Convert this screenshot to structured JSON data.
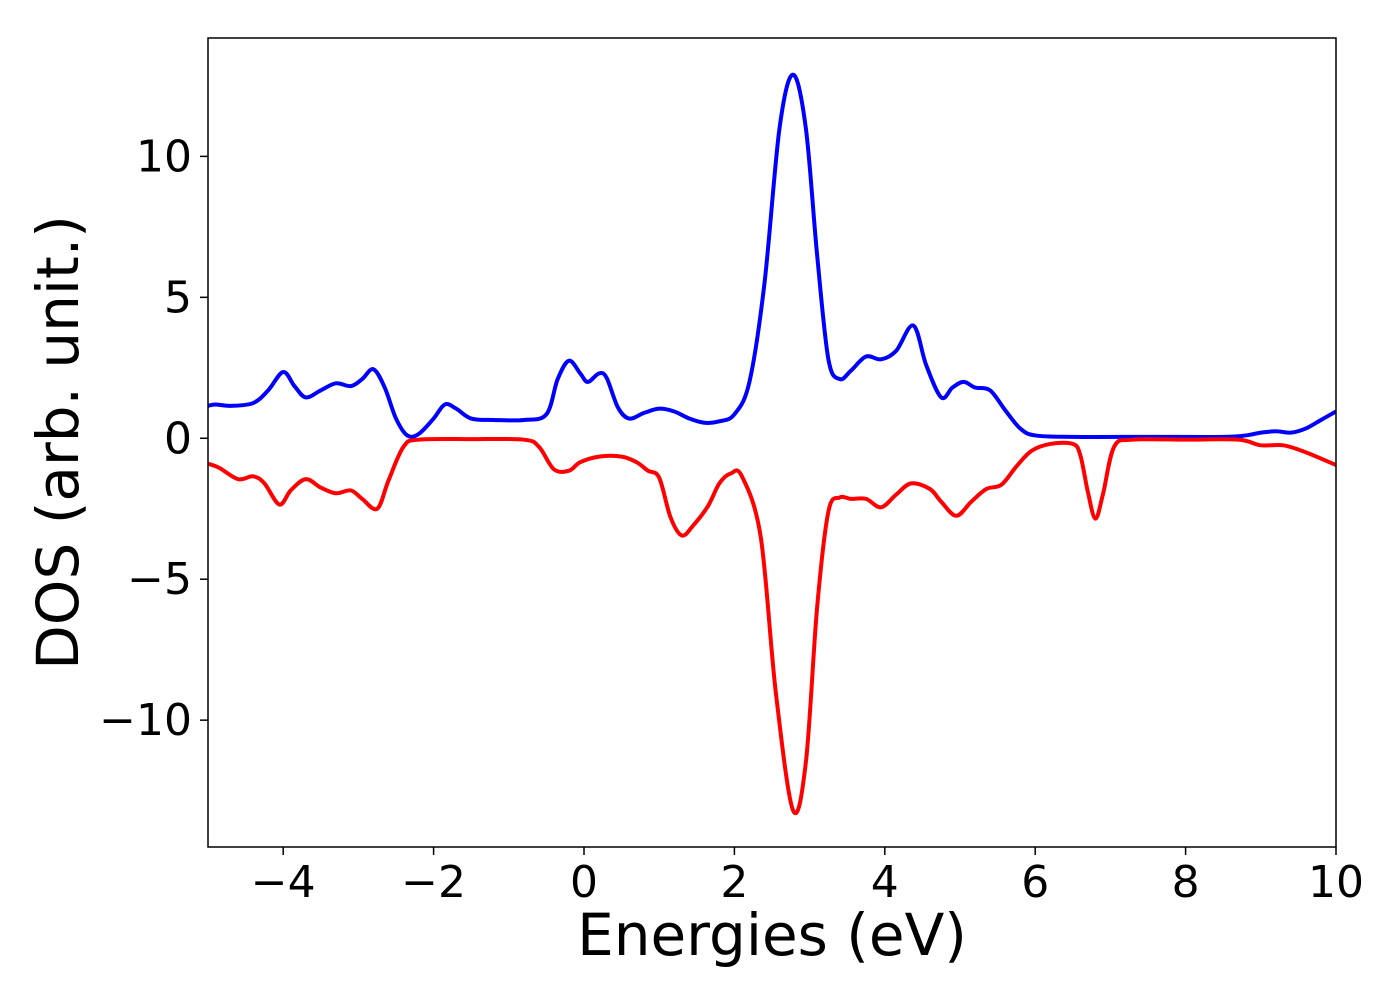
{
  "chart_data": {
    "type": "line",
    "title": "",
    "xlabel": "Energies (eV)",
    "ylabel": "DOS (arb. unit.)",
    "xlim": [
      -5,
      10
    ],
    "ylim": [
      -14.5,
      14.2
    ],
    "grid": false,
    "xticks": [
      {
        "value": -4,
        "label": "−4"
      },
      {
        "value": -2,
        "label": "−2"
      },
      {
        "value": 0,
        "label": "0"
      },
      {
        "value": 2,
        "label": "2"
      },
      {
        "value": 4,
        "label": "4"
      },
      {
        "value": 6,
        "label": "6"
      },
      {
        "value": 8,
        "label": "8"
      },
      {
        "value": 10,
        "label": "10"
      }
    ],
    "yticks": [
      {
        "value": -10,
        "label": "−10"
      },
      {
        "value": -5,
        "label": "−5"
      },
      {
        "value": 0,
        "label": "0"
      },
      {
        "value": 5,
        "label": "5"
      },
      {
        "value": 10,
        "label": "10"
      }
    ],
    "series": [
      {
        "color": "#0000ff",
        "points": [
          [
            -5.0,
            1.15
          ],
          [
            -4.9,
            1.2
          ],
          [
            -4.7,
            1.15
          ],
          [
            -4.4,
            1.25
          ],
          [
            -4.2,
            1.7
          ],
          [
            -4.0,
            2.35
          ],
          [
            -3.85,
            1.85
          ],
          [
            -3.7,
            1.45
          ],
          [
            -3.5,
            1.7
          ],
          [
            -3.3,
            1.95
          ],
          [
            -3.1,
            1.85
          ],
          [
            -2.95,
            2.1
          ],
          [
            -2.8,
            2.45
          ],
          [
            -2.65,
            1.8
          ],
          [
            -2.5,
            0.7
          ],
          [
            -2.35,
            0.1
          ],
          [
            -2.2,
            0.15
          ],
          [
            -2.0,
            0.7
          ],
          [
            -1.85,
            1.2
          ],
          [
            -1.7,
            1.05
          ],
          [
            -1.5,
            0.7
          ],
          [
            -1.2,
            0.65
          ],
          [
            -0.8,
            0.65
          ],
          [
            -0.5,
            0.85
          ],
          [
            -0.35,
            2.1
          ],
          [
            -0.2,
            2.75
          ],
          [
            -0.05,
            2.3
          ],
          [
            0.05,
            2.0
          ],
          [
            0.2,
            2.3
          ],
          [
            0.3,
            2.15
          ],
          [
            0.45,
            1.1
          ],
          [
            0.6,
            0.7
          ],
          [
            0.8,
            0.9
          ],
          [
            1.0,
            1.05
          ],
          [
            1.2,
            0.95
          ],
          [
            1.4,
            0.7
          ],
          [
            1.6,
            0.55
          ],
          [
            1.8,
            0.6
          ],
          [
            2.0,
            0.85
          ],
          [
            2.2,
            2.0
          ],
          [
            2.4,
            5.5
          ],
          [
            2.6,
            11.0
          ],
          [
            2.78,
            12.9
          ],
          [
            2.95,
            11.0
          ],
          [
            3.1,
            6.5
          ],
          [
            3.25,
            2.8
          ],
          [
            3.4,
            2.1
          ],
          [
            3.55,
            2.4
          ],
          [
            3.75,
            2.9
          ],
          [
            3.95,
            2.8
          ],
          [
            4.15,
            3.1
          ],
          [
            4.38,
            4.0
          ],
          [
            4.55,
            2.6
          ],
          [
            4.75,
            1.45
          ],
          [
            4.9,
            1.8
          ],
          [
            5.05,
            2.0
          ],
          [
            5.2,
            1.8
          ],
          [
            5.4,
            1.7
          ],
          [
            5.6,
            1.0
          ],
          [
            5.8,
            0.35
          ],
          [
            6.0,
            0.1
          ],
          [
            6.5,
            0.05
          ],
          [
            7.5,
            0.05
          ],
          [
            8.5,
            0.05
          ],
          [
            8.8,
            0.1
          ],
          [
            9.0,
            0.2
          ],
          [
            9.2,
            0.25
          ],
          [
            9.4,
            0.2
          ],
          [
            9.6,
            0.35
          ],
          [
            9.8,
            0.65
          ],
          [
            10.0,
            0.95
          ]
        ]
      },
      {
        "color": "#ff0000",
        "points": [
          [
            -5.0,
            -0.9
          ],
          [
            -4.85,
            -1.05
          ],
          [
            -4.6,
            -1.45
          ],
          [
            -4.4,
            -1.35
          ],
          [
            -4.25,
            -1.6
          ],
          [
            -4.05,
            -2.35
          ],
          [
            -3.9,
            -1.85
          ],
          [
            -3.7,
            -1.45
          ],
          [
            -3.5,
            -1.75
          ],
          [
            -3.3,
            -1.95
          ],
          [
            -3.1,
            -1.85
          ],
          [
            -2.95,
            -2.15
          ],
          [
            -2.75,
            -2.5
          ],
          [
            -2.6,
            -1.5
          ],
          [
            -2.4,
            -0.3
          ],
          [
            -2.2,
            -0.05
          ],
          [
            -1.5,
            -0.03
          ],
          [
            -0.8,
            -0.05
          ],
          [
            -0.6,
            -0.3
          ],
          [
            -0.4,
            -1.1
          ],
          [
            -0.2,
            -1.15
          ],
          [
            -0.05,
            -0.85
          ],
          [
            0.2,
            -0.65
          ],
          [
            0.5,
            -0.65
          ],
          [
            0.7,
            -0.85
          ],
          [
            0.85,
            -1.15
          ],
          [
            1.0,
            -1.4
          ],
          [
            1.15,
            -2.8
          ],
          [
            1.3,
            -3.45
          ],
          [
            1.45,
            -3.1
          ],
          [
            1.65,
            -2.4
          ],
          [
            1.8,
            -1.6
          ],
          [
            1.95,
            -1.25
          ],
          [
            2.1,
            -1.35
          ],
          [
            2.35,
            -3.5
          ],
          [
            2.55,
            -9.0
          ],
          [
            2.78,
            -13.2
          ],
          [
            2.95,
            -11.5
          ],
          [
            3.1,
            -6.0
          ],
          [
            3.25,
            -2.6
          ],
          [
            3.4,
            -2.1
          ],
          [
            3.55,
            -2.15
          ],
          [
            3.75,
            -2.15
          ],
          [
            3.95,
            -2.45
          ],
          [
            4.15,
            -2.0
          ],
          [
            4.35,
            -1.6
          ],
          [
            4.6,
            -1.8
          ],
          [
            4.75,
            -2.25
          ],
          [
            4.95,
            -2.75
          ],
          [
            5.15,
            -2.25
          ],
          [
            5.35,
            -1.8
          ],
          [
            5.55,
            -1.65
          ],
          [
            5.75,
            -1.0
          ],
          [
            5.95,
            -0.45
          ],
          [
            6.2,
            -0.2
          ],
          [
            6.5,
            -0.2
          ],
          [
            6.6,
            -0.6
          ],
          [
            6.7,
            -1.9
          ],
          [
            6.8,
            -2.85
          ],
          [
            6.9,
            -2.0
          ],
          [
            7.05,
            -0.3
          ],
          [
            7.3,
            -0.05
          ],
          [
            8.0,
            -0.05
          ],
          [
            8.7,
            -0.05
          ],
          [
            9.0,
            -0.25
          ],
          [
            9.3,
            -0.25
          ],
          [
            9.6,
            -0.5
          ],
          [
            10.0,
            -0.95
          ]
        ]
      }
    ]
  }
}
